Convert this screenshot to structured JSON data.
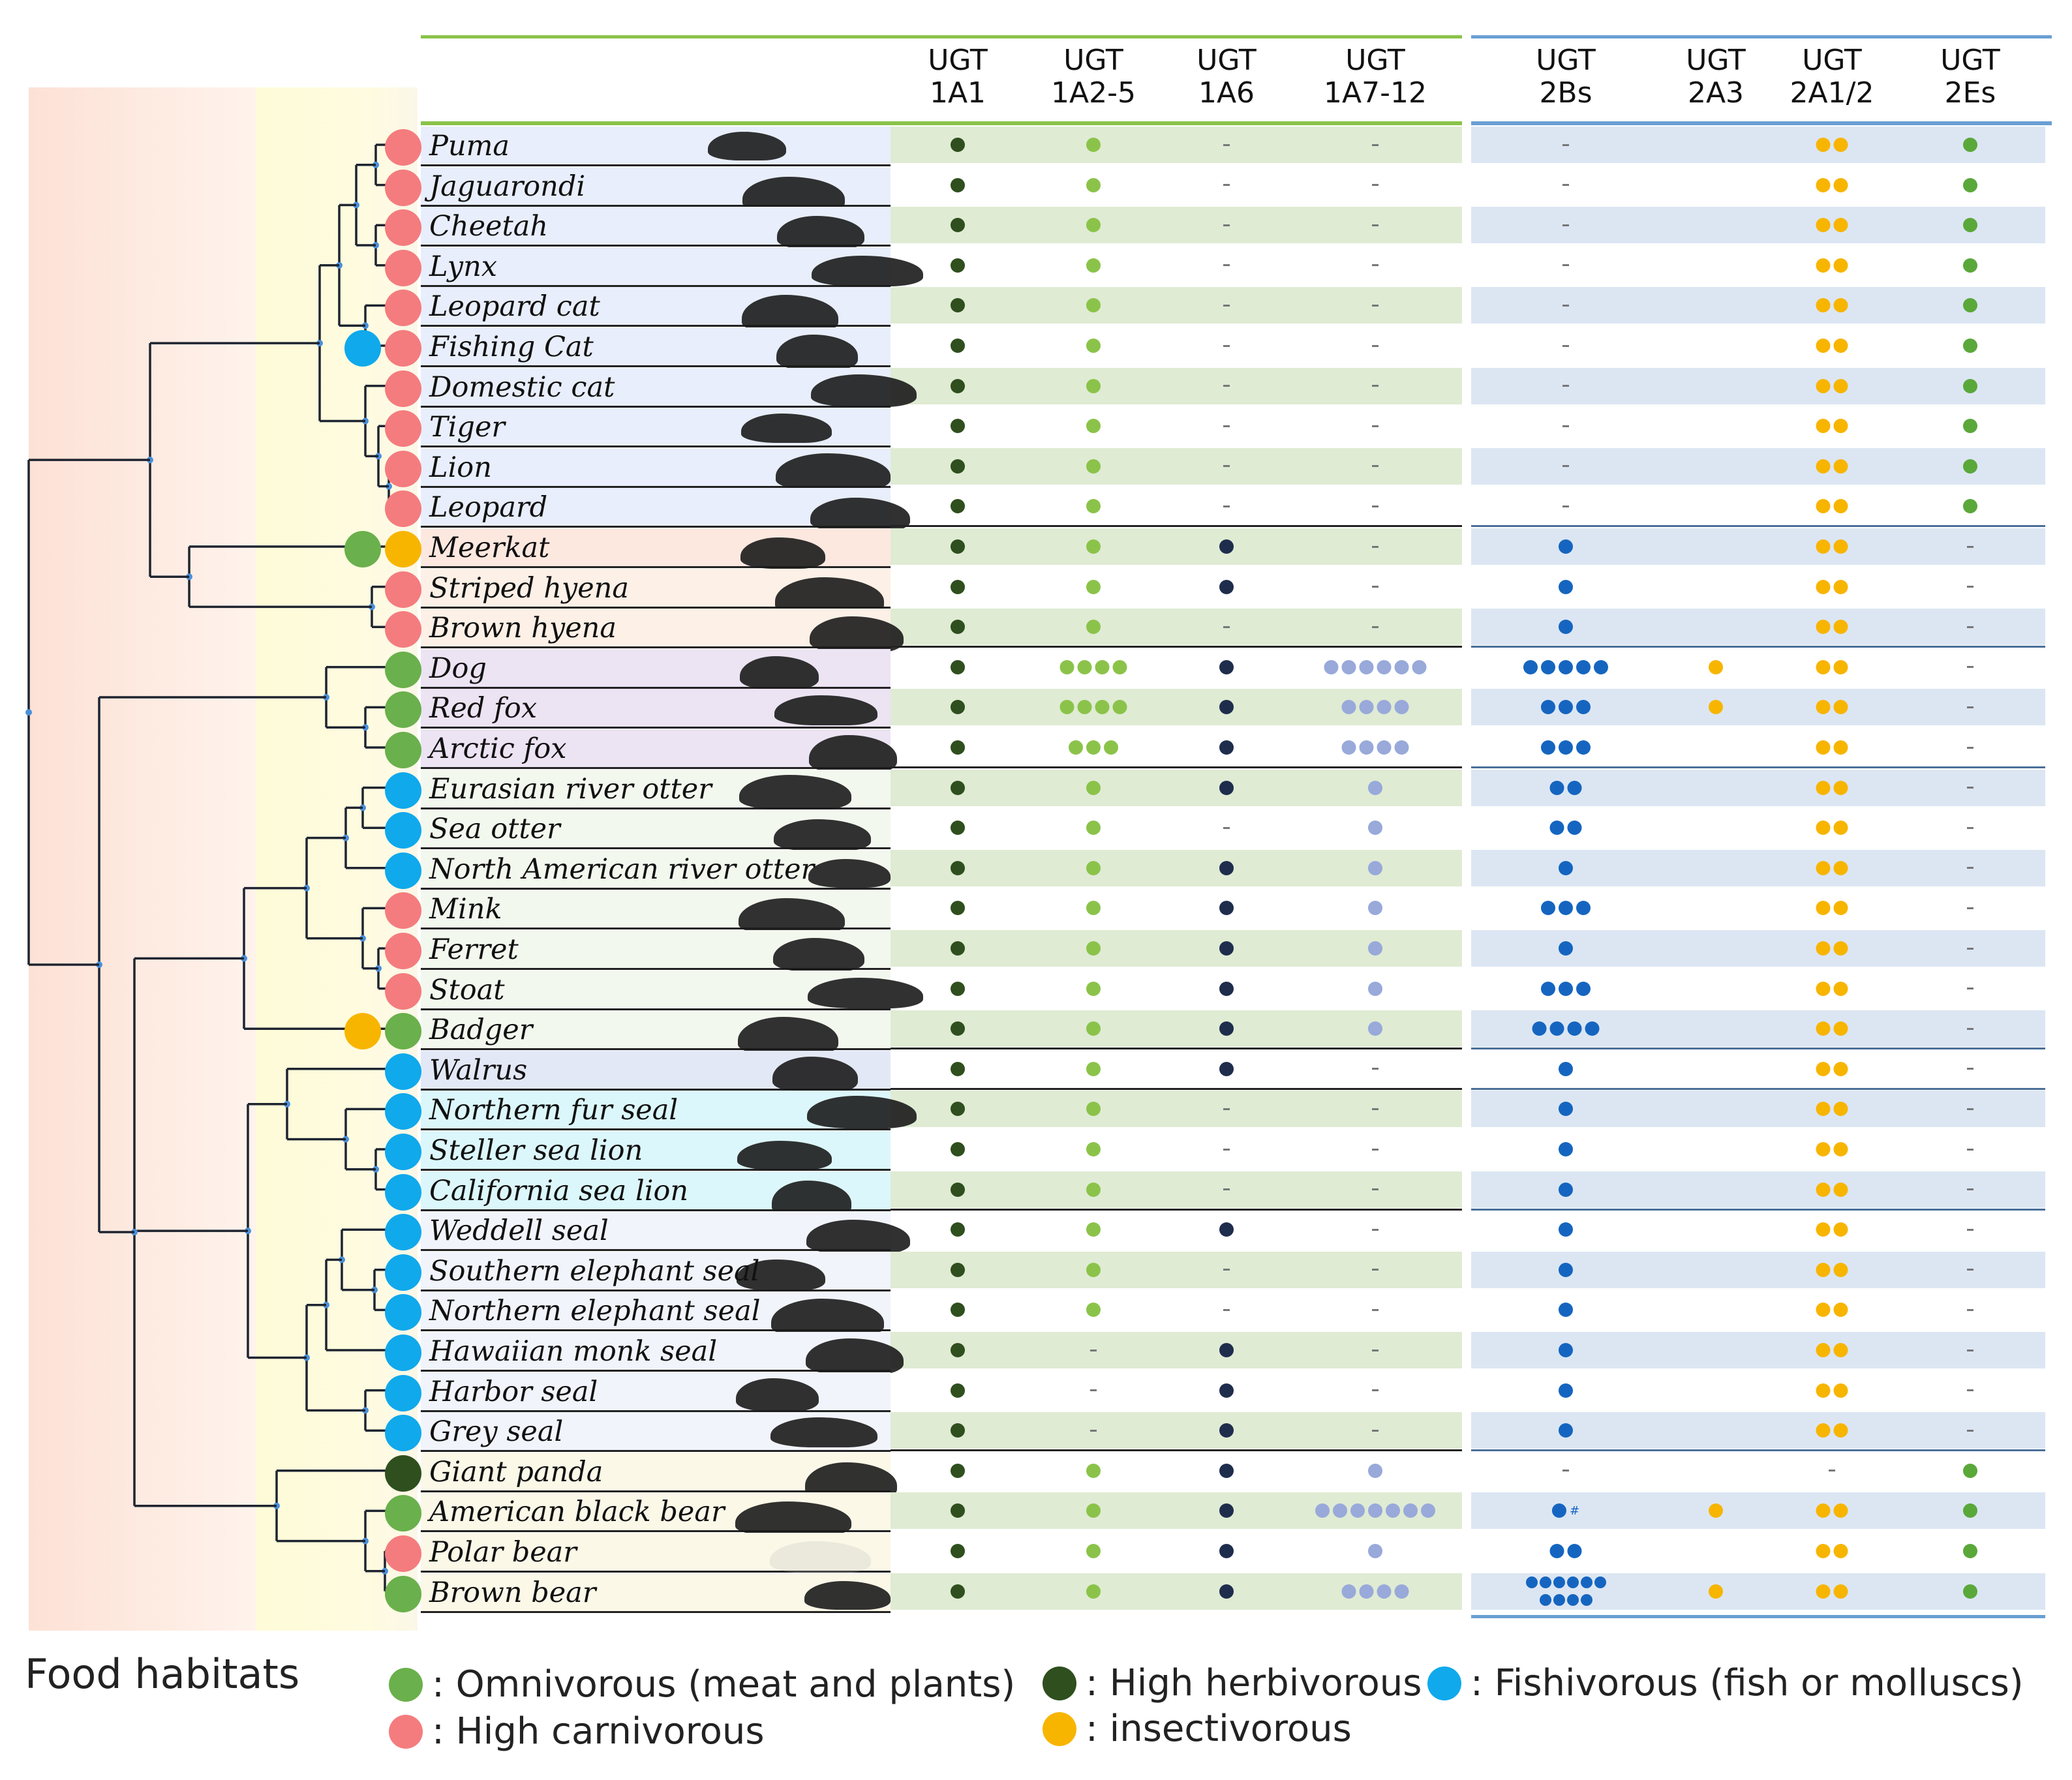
{
  "colors": {
    "carnivorous": "#f47c7e",
    "omnivorous": "#6ab04c",
    "herbivorous": "#2f4f1e",
    "fishivorous": "#10a9ec",
    "insectivorous": "#f7b500",
    "ugt1a1": "#2f4f1e",
    "ugt1a25": "#8bc34a",
    "ugt1a6": "#1f2d4d",
    "ugt1a712": "#98a9da",
    "ugt2bs": "#1565c0",
    "ugt2a3": "#f7b500",
    "ugt2a12": "#f7b500",
    "ugt2es": "#5aa83a"
  },
  "columns": [
    {
      "key": "ugt1a1",
      "line1": "UGT",
      "line2": "1A1"
    },
    {
      "key": "ugt1a25",
      "line1": "UGT",
      "line2": "1A2-5"
    },
    {
      "key": "ugt1a6",
      "line1": "UGT",
      "line2": "1A6"
    },
    {
      "key": "ugt1a712",
      "line1": "UGT",
      "line2": "1A7-12"
    },
    {
      "key": "ugt2bs",
      "line1": "UGT",
      "line2": "2Bs"
    },
    {
      "key": "ugt2a3",
      "line1": "UGT",
      "line2": "2A3"
    },
    {
      "key": "ugt2a12",
      "line1": "UGT",
      "line2": "2A1/2"
    },
    {
      "key": "ugt2es",
      "line1": "UGT",
      "line2": "2Es"
    }
  ],
  "species": [
    {
      "name": "Puma",
      "habitat": [
        "carnivorous"
      ],
      "silhouette": "puma-silhouette",
      "values": [
        1,
        1,
        0,
        0,
        0,
        null,
        2,
        1
      ]
    },
    {
      "name": "Jaguarondi",
      "habitat": [
        "carnivorous"
      ],
      "silhouette": "jaguarondi-silhouette",
      "values": [
        1,
        1,
        0,
        0,
        0,
        null,
        2,
        1
      ]
    },
    {
      "name": "Cheetah",
      "habitat": [
        "carnivorous"
      ],
      "silhouette": "cheetah-silhouette",
      "values": [
        1,
        1,
        0,
        0,
        0,
        null,
        2,
        1
      ]
    },
    {
      "name": "Lynx",
      "habitat": [
        "carnivorous"
      ],
      "silhouette": "lynx-silhouette",
      "values": [
        1,
        1,
        0,
        0,
        0,
        null,
        2,
        1
      ]
    },
    {
      "name": "Leopard cat",
      "habitat": [
        "carnivorous"
      ],
      "silhouette": "leopard-cat-silhouette",
      "values": [
        1,
        1,
        0,
        0,
        0,
        null,
        2,
        1
      ]
    },
    {
      "name": "Fishing Cat",
      "habitat": [
        "fishivorous",
        "carnivorous"
      ],
      "silhouette": "fishing-cat-silhouette",
      "values": [
        1,
        1,
        0,
        0,
        0,
        null,
        2,
        1
      ]
    },
    {
      "name": "Domestic cat",
      "habitat": [
        "carnivorous"
      ],
      "silhouette": "domestic-cat-silhouette",
      "values": [
        1,
        1,
        0,
        0,
        0,
        null,
        2,
        1
      ]
    },
    {
      "name": "Tiger",
      "habitat": [
        "carnivorous"
      ],
      "silhouette": "tiger-silhouette",
      "values": [
        1,
        1,
        0,
        0,
        0,
        null,
        2,
        1
      ]
    },
    {
      "name": "Lion",
      "habitat": [
        "carnivorous"
      ],
      "silhouette": "lion-silhouette",
      "values": [
        1,
        1,
        0,
        0,
        0,
        null,
        2,
        1
      ]
    },
    {
      "name": "Leopard",
      "habitat": [
        "carnivorous"
      ],
      "silhouette": "leopard-silhouette",
      "values": [
        1,
        1,
        0,
        0,
        0,
        null,
        2,
        1
      ]
    },
    {
      "name": "Meerkat",
      "habitat": [
        "omnivorous",
        "insectivorous"
      ],
      "silhouette": "meerkat-silhouette",
      "values": [
        1,
        1,
        1,
        0,
        1,
        null,
        2,
        0
      ]
    },
    {
      "name": "Striped hyena",
      "habitat": [
        "carnivorous"
      ],
      "silhouette": "striped-hyena-silhouette",
      "values": [
        1,
        1,
        1,
        0,
        1,
        null,
        2,
        0
      ]
    },
    {
      "name": "Brown hyena",
      "habitat": [
        "carnivorous"
      ],
      "silhouette": "brown-hyena-silhouette",
      "values": [
        1,
        1,
        0,
        0,
        1,
        null,
        2,
        0
      ]
    },
    {
      "name": "Dog",
      "habitat": [
        "omnivorous"
      ],
      "silhouette": "dog-silhouette",
      "values": [
        1,
        4,
        1,
        6,
        5,
        1,
        2,
        0
      ]
    },
    {
      "name": "Red fox",
      "habitat": [
        "omnivorous"
      ],
      "silhouette": "red-fox-silhouette",
      "values": [
        1,
        4,
        1,
        4,
        3,
        1,
        2,
        0
      ]
    },
    {
      "name": "Arctic fox",
      "habitat": [
        "omnivorous"
      ],
      "silhouette": "arctic-fox-silhouette",
      "values": [
        1,
        3,
        1,
        4,
        3,
        null,
        2,
        0
      ]
    },
    {
      "name": "Eurasian river otter",
      "habitat": [
        "fishivorous"
      ],
      "silhouette": "eurasian-otter-silhouette",
      "values": [
        1,
        1,
        1,
        1,
        2,
        null,
        2,
        0
      ]
    },
    {
      "name": "Sea otter",
      "habitat": [
        "fishivorous"
      ],
      "silhouette": "sea-otter-silhouette",
      "values": [
        1,
        1,
        0,
        1,
        2,
        null,
        2,
        0
      ]
    },
    {
      "name": "North American river otter",
      "habitat": [
        "fishivorous"
      ],
      "silhouette": "na-otter-silhouette",
      "values": [
        1,
        1,
        1,
        1,
        1,
        null,
        2,
        0
      ]
    },
    {
      "name": "Mink",
      "habitat": [
        "carnivorous"
      ],
      "silhouette": "mink-silhouette",
      "values": [
        1,
        1,
        1,
        1,
        3,
        null,
        2,
        0
      ]
    },
    {
      "name": "Ferret",
      "habitat": [
        "carnivorous"
      ],
      "silhouette": "ferret-silhouette",
      "values": [
        1,
        1,
        1,
        1,
        1,
        null,
        2,
        0
      ]
    },
    {
      "name": "Stoat",
      "habitat": [
        "carnivorous"
      ],
      "silhouette": "stoat-silhouette",
      "values": [
        1,
        1,
        1,
        1,
        3,
        null,
        2,
        0
      ]
    },
    {
      "name": "Badger",
      "habitat": [
        "insectivorous",
        "omnivorous"
      ],
      "silhouette": "badger-silhouette",
      "values": [
        1,
        1,
        1,
        1,
        4,
        null,
        2,
        0
      ]
    },
    {
      "name": "Walrus",
      "habitat": [
        "fishivorous"
      ],
      "silhouette": "walrus-silhouette",
      "values": [
        1,
        1,
        1,
        0,
        1,
        null,
        2,
        0
      ]
    },
    {
      "name": "Northern fur seal",
      "habitat": [
        "fishivorous"
      ],
      "silhouette": "fur-seal-silhouette",
      "values": [
        1,
        1,
        0,
        0,
        1,
        null,
        2,
        0
      ]
    },
    {
      "name": "Steller sea lion",
      "habitat": [
        "fishivorous"
      ],
      "silhouette": "steller-sea-lion-silhouette",
      "values": [
        1,
        1,
        0,
        0,
        1,
        null,
        2,
        0
      ]
    },
    {
      "name": "California sea lion",
      "habitat": [
        "fishivorous"
      ],
      "silhouette": "california-sea-lion-silhouette",
      "values": [
        1,
        1,
        0,
        0,
        1,
        null,
        2,
        0
      ]
    },
    {
      "name": "Weddell seal",
      "habitat": [
        "fishivorous"
      ],
      "silhouette": "weddell-seal-silhouette",
      "values": [
        1,
        1,
        1,
        0,
        1,
        null,
        2,
        0
      ]
    },
    {
      "name": "Southern elephant seal",
      "habitat": [
        "fishivorous"
      ],
      "silhouette": "southern-elephant-seal-silhouette",
      "values": [
        1,
        1,
        0,
        0,
        1,
        null,
        2,
        0
      ]
    },
    {
      "name": "Northern elephant seal",
      "habitat": [
        "fishivorous"
      ],
      "silhouette": "northern-elephant-seal-silhouette",
      "values": [
        1,
        1,
        0,
        0,
        1,
        null,
        2,
        0
      ]
    },
    {
      "name": "Hawaiian monk seal",
      "habitat": [
        "fishivorous"
      ],
      "silhouette": "monk-seal-silhouette",
      "values": [
        1,
        0,
        1,
        0,
        1,
        null,
        2,
        0
      ]
    },
    {
      "name": "Harbor seal",
      "habitat": [
        "fishivorous"
      ],
      "silhouette": "harbor-seal-silhouette",
      "values": [
        1,
        0,
        1,
        0,
        1,
        null,
        2,
        0
      ]
    },
    {
      "name": "Grey seal",
      "habitat": [
        "fishivorous"
      ],
      "silhouette": "grey-seal-silhouette",
      "values": [
        1,
        0,
        1,
        0,
        1,
        null,
        2,
        0
      ]
    },
    {
      "name": "Giant panda",
      "habitat": [
        "herbivorous"
      ],
      "silhouette": "giant-panda-silhouette",
      "values": [
        1,
        1,
        1,
        1,
        0,
        null,
        0,
        1
      ]
    },
    {
      "name": "American black bear",
      "habitat": [
        "omnivorous"
      ],
      "silhouette": "black-bear-silhouette",
      "values": [
        1,
        1,
        1,
        7,
        "1#",
        1,
        2,
        1
      ]
    },
    {
      "name": "Polar bear",
      "habitat": [
        "carnivorous"
      ],
      "silhouette": "polar-bear-silhouette",
      "values": [
        1,
        1,
        1,
        1,
        2,
        null,
        2,
        1
      ]
    },
    {
      "name": "Brown bear",
      "habitat": [
        "omnivorous"
      ],
      "silhouette": "brown-bear-silhouette",
      "values": [
        1,
        1,
        1,
        4,
        10,
        1,
        2,
        1
      ]
    }
  ],
  "legend": {
    "title": "Food habitats",
    "omnivorous": ": Omnivorous (meat and plants)",
    "herbivorous": ": High herbivorous",
    "fishivorous": ": Fishivorous (fish or molluscs)",
    "carnivorous": ": High carnivorous",
    "insectivorous": ": insectivorous"
  }
}
